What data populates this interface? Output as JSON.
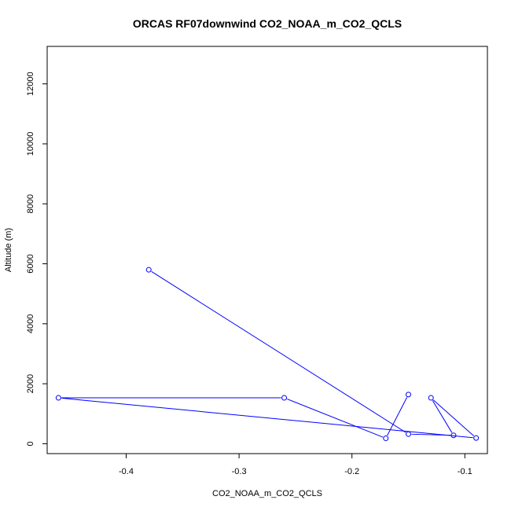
{
  "chart_data": {
    "type": "line",
    "title": "ORCAS RF07downwind CO2_NOAA_m_CO2_QCLS",
    "xlabel": "CO2_NOAA_m_CO2_QCLS",
    "ylabel": "Altitude (m)",
    "xlim": [
      -0.47,
      -0.08
    ],
    "ylim": [
      -330,
      13250
    ],
    "x_ticks": [
      -0.4,
      -0.3,
      -0.2,
      -0.1
    ],
    "x_tick_labels": [
      "-0.4",
      "-0.3",
      "-0.2",
      "-0.1"
    ],
    "y_ticks": [
      0,
      2000,
      4000,
      6000,
      8000,
      10000,
      12000
    ],
    "y_tick_labels": [
      "0",
      "2000",
      "4000",
      "6000",
      "8000",
      "10000",
      "12000"
    ],
    "line_color": "#0000ff",
    "points": [
      {
        "x": -0.38,
        "y": 5800
      },
      {
        "x": -0.15,
        "y": 320
      },
      {
        "x": -0.11,
        "y": 280
      },
      {
        "x": -0.13,
        "y": 1530
      },
      {
        "x": -0.09,
        "y": 190
      },
      {
        "x": -0.46,
        "y": 1530
      },
      {
        "x": -0.26,
        "y": 1530
      },
      {
        "x": -0.17,
        "y": 180
      },
      {
        "x": -0.15,
        "y": 1640
      }
    ]
  }
}
